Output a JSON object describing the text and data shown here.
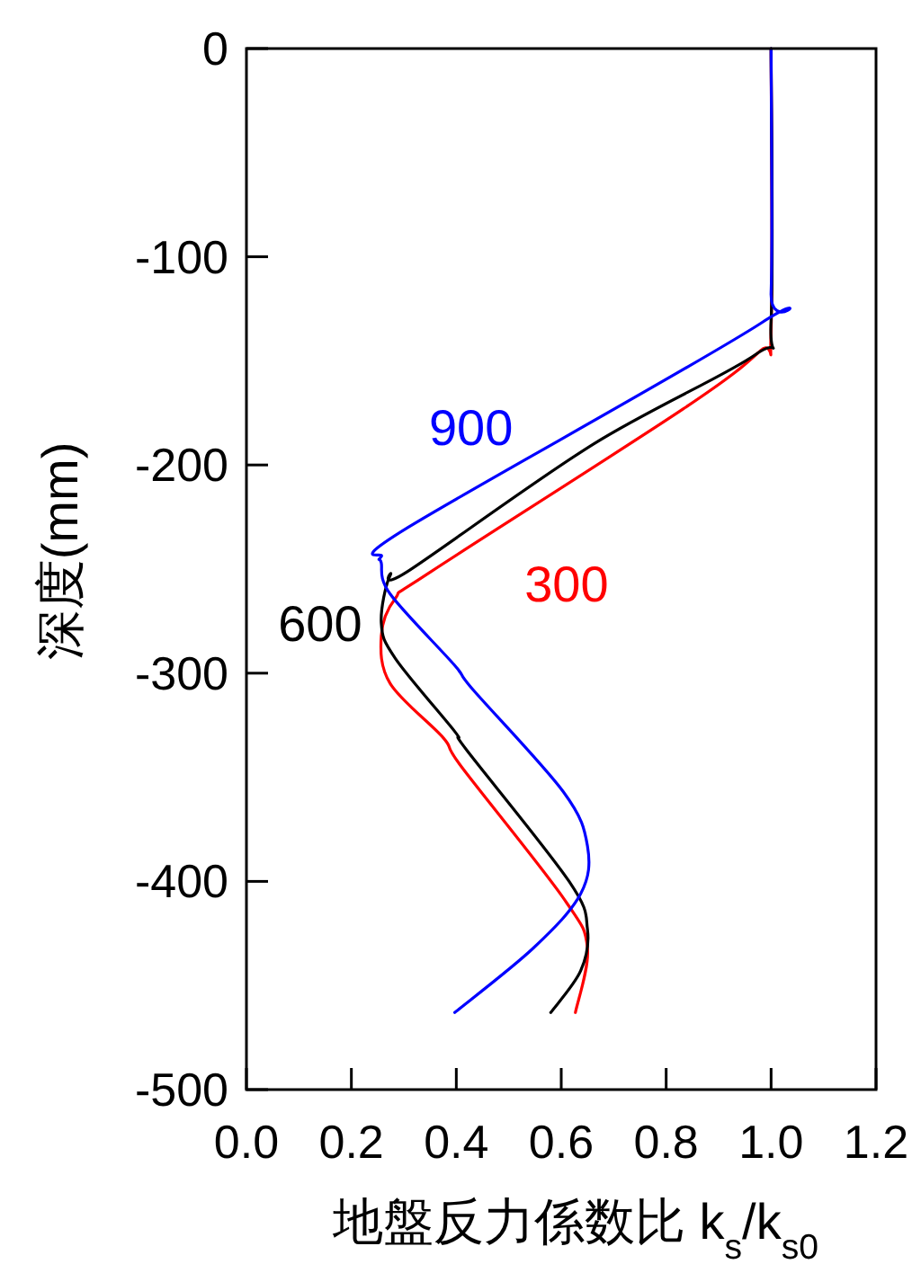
{
  "chart_data": {
    "type": "line",
    "xlabel": "地盤反力係数比 k$_{s}$/k$_{s0}$",
    "ylabel": "深度(mm)",
    "xlim": [
      0,
      1.2
    ],
    "xticks": [
      {
        "value": 0,
        "label": "0.0"
      },
      {
        "value": 0.2,
        "label": "0.2"
      },
      {
        "value": 0.4,
        "label": "0.4"
      },
      {
        "value": 0.6,
        "label": "0.6"
      },
      {
        "value": 0.8,
        "label": "0.8"
      },
      {
        "value": 1,
        "label": "1.0"
      },
      {
        "value": 1.2,
        "label": "1.2"
      }
    ],
    "ylim": [
      -500,
      0
    ],
    "yticks": [
      0,
      -100,
      -200,
      -300,
      -400,
      -500
    ],
    "grid": false,
    "marker": "none",
    "line_style": "solid",
    "series": [
      {
        "name": "300",
        "color": "#ff0000",
        "x": [
          1,
          1,
          0.98,
          0.833,
          0.353,
          0.284,
          0.257,
          0.274,
          0.375,
          0.41,
          0.604,
          0.65,
          0.627
        ],
        "values": [
          0,
          -135,
          -145,
          -173,
          -251,
          -264,
          -282,
          -305,
          -331,
          -345,
          -408,
          -432,
          -463
        ]
      },
      {
        "name": "600",
        "color": "#000000",
        "x": [
          1,
          1,
          0.97,
          0.661,
          0.308,
          0.274,
          0.257,
          0.284,
          0.397,
          0.42,
          0.615,
          0.65,
          0.637,
          0.58
        ],
        "values": [
          0,
          -130,
          -147,
          -190,
          -251,
          -253,
          -276,
          -293,
          -328,
          -337,
          -400,
          -423,
          -443,
          -463
        ]
      },
      {
        "name": "900",
        "color": "#0000ff",
        "x": [
          1,
          1,
          0.98,
          0.308,
          0.257,
          0.257,
          0.274,
          0.396,
          0.432,
          0.604,
          0.65,
          0.637,
          0.547,
          0.397
        ],
        "values": [
          0,
          -117,
          -132,
          -230,
          -244,
          -247,
          -262,
          -296,
          -308,
          -357,
          -383,
          -406,
          -432,
          -463
        ]
      }
    ]
  }
}
